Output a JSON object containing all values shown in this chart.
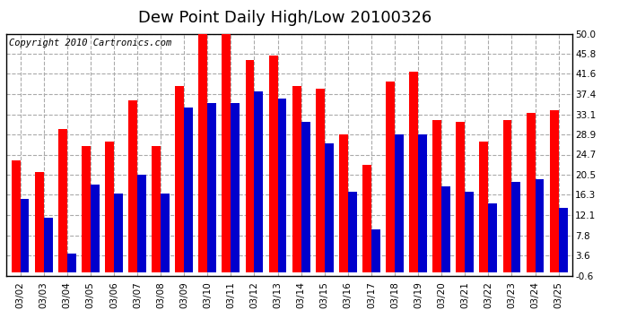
{
  "title": "Dew Point Daily High/Low 20100326",
  "copyright": "Copyright 2010 Cartronics.com",
  "dates": [
    "03/02",
    "03/03",
    "03/04",
    "03/05",
    "03/06",
    "03/07",
    "03/08",
    "03/09",
    "03/10",
    "03/11",
    "03/12",
    "03/13",
    "03/14",
    "03/15",
    "03/16",
    "03/17",
    "03/18",
    "03/19",
    "03/20",
    "03/21",
    "03/22",
    "03/23",
    "03/24",
    "03/25"
  ],
  "highs": [
    23.5,
    21.0,
    30.0,
    26.5,
    27.5,
    36.0,
    26.5,
    39.0,
    50.0,
    50.0,
    44.5,
    45.5,
    39.0,
    38.5,
    29.0,
    22.5,
    40.0,
    42.0,
    32.0,
    31.5,
    27.5,
    32.0,
    33.5,
    34.0
  ],
  "lows": [
    15.5,
    11.5,
    4.0,
    18.5,
    16.5,
    20.5,
    16.5,
    34.5,
    35.5,
    35.5,
    38.0,
    36.5,
    31.5,
    27.0,
    17.0,
    9.0,
    29.0,
    29.0,
    18.0,
    17.0,
    14.5,
    19.0,
    19.5,
    13.5
  ],
  "high_color": "#ff0000",
  "low_color": "#0000cc",
  "bg_color": "#ffffff",
  "plot_bg_color": "#ffffff",
  "grid_color": "#aaaaaa",
  "ymin": -0.6,
  "ymax": 50.0,
  "yticks": [
    -0.6,
    3.6,
    7.8,
    12.1,
    16.3,
    20.5,
    24.7,
    28.9,
    33.1,
    37.4,
    41.6,
    45.8,
    50.0
  ],
  "title_fontsize": 13,
  "copyright_fontsize": 7.5,
  "tick_fontsize": 7.5
}
